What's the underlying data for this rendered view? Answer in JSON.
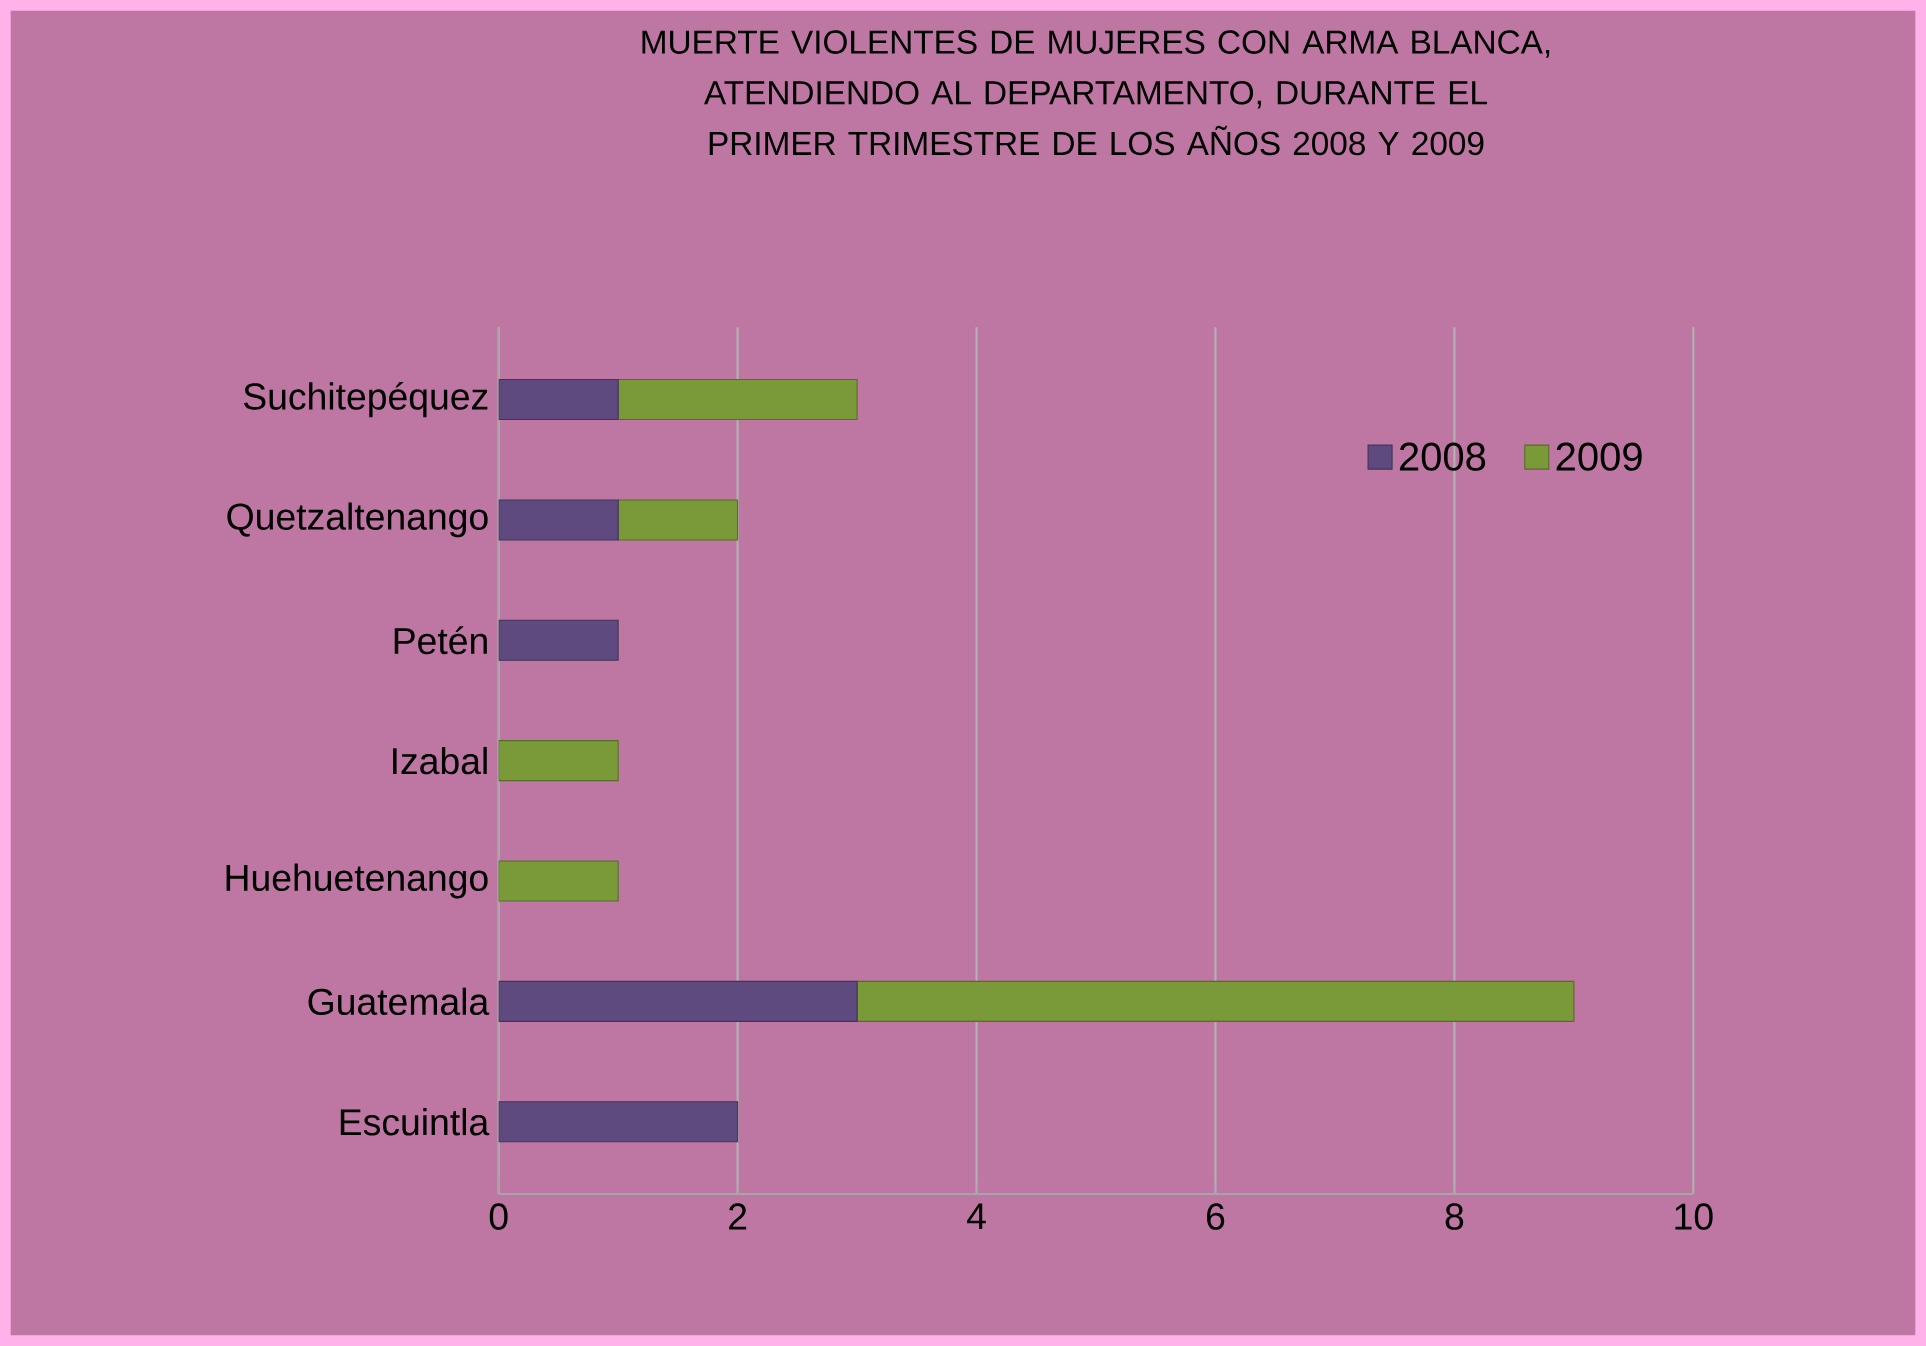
{
  "chart_data": {
    "type": "bar",
    "orientation": "horizontal",
    "stacked": true,
    "title": "MUERTE VIOLENTES DE MUJERES CON ARMA BLANCA, ATENDIENDO AL DEPARTAMENTO, DURANTE EL PRIMER TRIMESTRE DE LOS AÑOS 2008 Y 2009",
    "categories": [
      "Suchitepéquez",
      "Quetzaltenango",
      "Petén",
      "Izabal",
      "Huehuetenango",
      "Guatemala",
      "Escuintla"
    ],
    "series": [
      {
        "name": "2008",
        "color": "#5e4a7e",
        "values": [
          1,
          1,
          1,
          0,
          0,
          3,
          2
        ]
      },
      {
        "name": "2009",
        "color": "#7a9a3a",
        "values": [
          2,
          1,
          0,
          1,
          1,
          6,
          0
        ]
      }
    ],
    "xlim": [
      0,
      10
    ],
    "xticks": [
      0,
      2,
      4,
      6,
      8,
      10
    ],
    "grid": "x",
    "legend": "top right"
  }
}
